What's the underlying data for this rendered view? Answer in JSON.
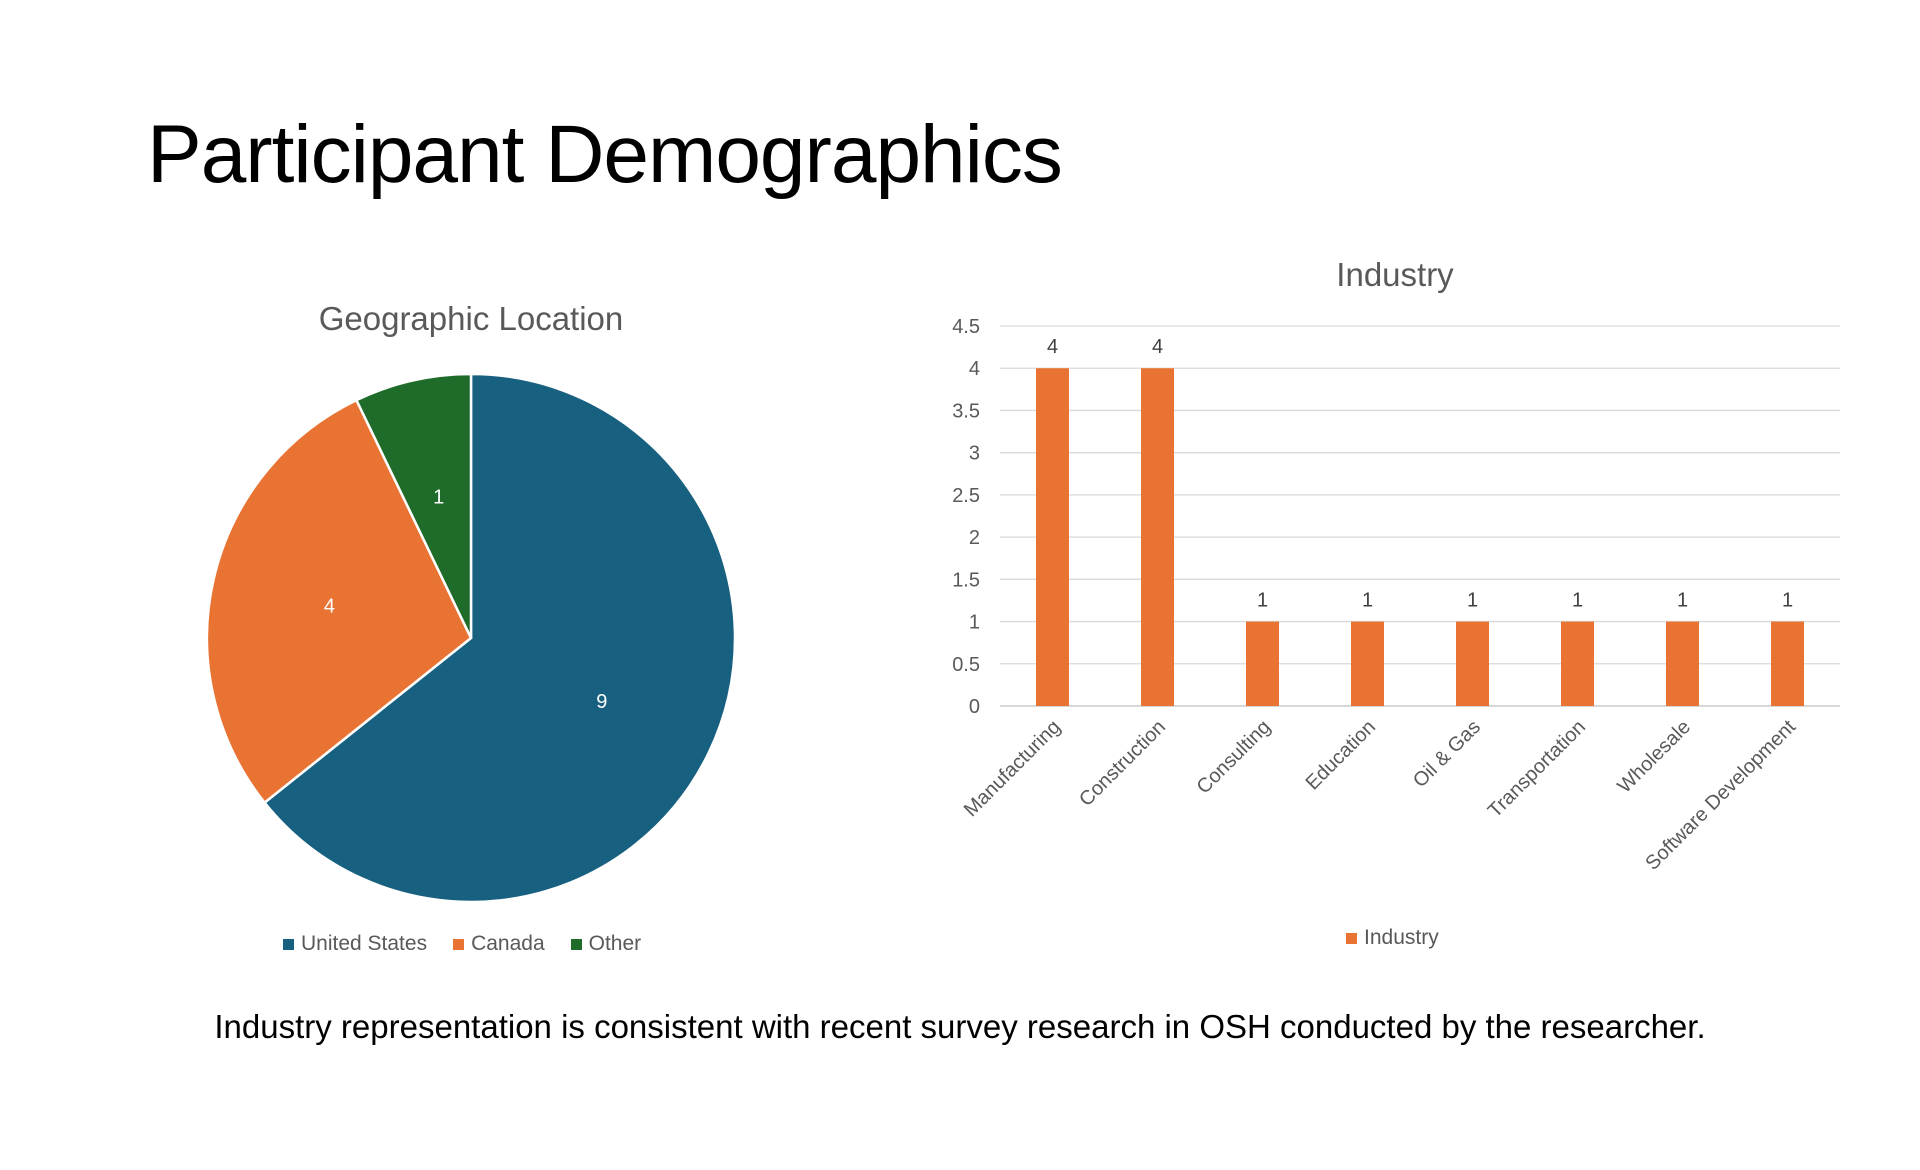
{
  "slide": {
    "title": "Participant Demographics",
    "footer": "Industry representation is consistent with recent survey research in OSH conducted by the researcher."
  },
  "chart_data": [
    {
      "type": "pie",
      "title": "Geographic Location",
      "labels": [
        "United States",
        "Canada",
        "Other"
      ],
      "values": [
        9,
        4,
        1
      ],
      "colors": [
        "#17607f",
        "#e97333",
        "#1f6b2a"
      ],
      "data_labels": [
        "9",
        "4",
        "1"
      ],
      "legend": "bottom"
    },
    {
      "type": "bar",
      "title": "Industry",
      "categories": [
        "Manufacturing",
        "Construction",
        "Consulting",
        "Education",
        "Oil & Gas",
        "Transportation",
        "Wholesale",
        "Software Development"
      ],
      "series": [
        {
          "name": "Industry",
          "values": [
            4,
            4,
            1,
            1,
            1,
            1,
            1,
            1
          ],
          "color": "#e97333"
        }
      ],
      "data_labels": [
        "4",
        "4",
        "1",
        "1",
        "1",
        "1",
        "1",
        "1"
      ],
      "ylim": [
        0,
        4.5
      ],
      "yticks": [
        0,
        0.5,
        1,
        1.5,
        2,
        2.5,
        3,
        3.5,
        4,
        4.5
      ],
      "ytick_labels": [
        "0",
        "0.5",
        "1",
        "1.5",
        "2",
        "2.5",
        "3",
        "3.5",
        "4",
        "4.5"
      ],
      "grid": true,
      "legend": "bottom"
    }
  ]
}
